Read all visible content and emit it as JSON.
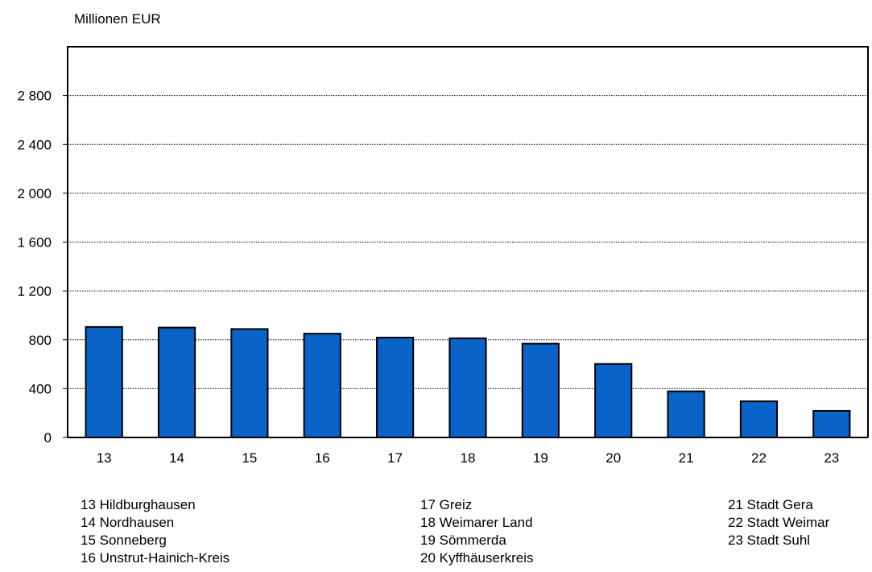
{
  "chart_data": {
    "type": "bar",
    "ylabel": "Millionen EUR",
    "categories": [
      "13",
      "14",
      "15",
      "16",
      "17",
      "18",
      "19",
      "20",
      "21",
      "22",
      "23"
    ],
    "values": [
      905,
      900,
      888,
      850,
      818,
      812,
      768,
      602,
      378,
      296,
      218
    ],
    "ylim": [
      0,
      3200
    ],
    "yticks": [
      0,
      400,
      800,
      1200,
      1600,
      2000,
      2400,
      2800
    ],
    "ytick_labels": [
      "0",
      "400",
      "800",
      "1 200",
      "1 600",
      "2 000",
      "2 400",
      "2 800"
    ],
    "grid": true,
    "bar_color": "#0a63c8",
    "legend": [
      [
        "13 Hildburghausen",
        "14 Nordhausen",
        "15 Sonneberg",
        "16 Unstrut-Hainich-Kreis"
      ],
      [
        "17 Greiz",
        "18 Weimarer Land",
        "19 Sömmerda",
        "20 Kyffhäuserkreis"
      ],
      [
        "21 Stadt Gera",
        "22 Stadt Weimar",
        "23 Stadt Suhl"
      ]
    ]
  }
}
